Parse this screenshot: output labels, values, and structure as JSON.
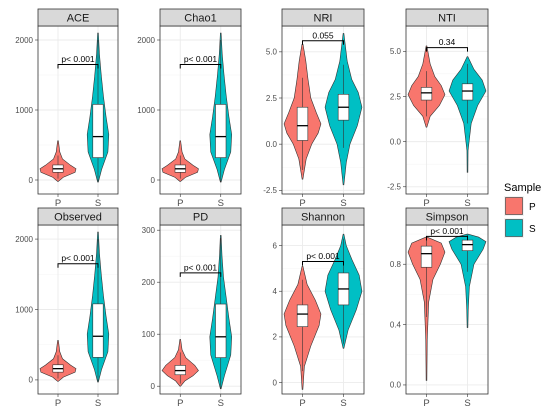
{
  "colors": {
    "P": "#F8766D",
    "S": "#00BFC4"
  },
  "legend": {
    "title": "Sample",
    "items": [
      "P",
      "S"
    ]
  },
  "chart_data": [
    {
      "type": "violin",
      "title": "ACE",
      "categories": [
        "P",
        "S"
      ],
      "yticks": [
        0,
        1000,
        2000
      ],
      "ylim": [
        -200,
        2200
      ],
      "annotation": "p< 0.001",
      "bracket_y": 1650,
      "violins": [
        {
          "group": "P",
          "min": -20,
          "max": 560,
          "widths": [
            [
              -20,
              0.02
            ],
            [
              40,
              0.3
            ],
            [
              110,
              0.95
            ],
            [
              160,
              1.0
            ],
            [
              210,
              0.7
            ],
            [
              300,
              0.25
            ],
            [
              400,
              0.1
            ],
            [
              560,
              0.02
            ]
          ]
        },
        {
          "group": "S",
          "min": -30,
          "max": 2100,
          "widths": [
            [
              -30,
              0.02
            ],
            [
              150,
              0.2
            ],
            [
              400,
              0.55
            ],
            [
              650,
              0.6
            ],
            [
              900,
              0.45
            ],
            [
              1200,
              0.3
            ],
            [
              1500,
              0.18
            ],
            [
              1800,
              0.08
            ],
            [
              2100,
              0.02
            ]
          ]
        }
      ],
      "boxes": [
        {
          "group": "P",
          "q1": 110,
          "median": 160,
          "q3": 215,
          "wlo": 20,
          "whi": 350
        },
        {
          "group": "S",
          "q1": 320,
          "median": 620,
          "q3": 1080,
          "wlo": -30,
          "whi": 2000
        }
      ]
    },
    {
      "type": "violin",
      "title": "Chao1",
      "categories": [
        "P",
        "S"
      ],
      "yticks": [
        0,
        1000,
        2000
      ],
      "ylim": [
        -200,
        2200
      ],
      "annotation": "p< 0.001",
      "bracket_y": 1650,
      "violins": [
        {
          "group": "P",
          "min": -20,
          "max": 560,
          "widths": [
            [
              -20,
              0.02
            ],
            [
              40,
              0.3
            ],
            [
              110,
              0.95
            ],
            [
              160,
              1.0
            ],
            [
              210,
              0.7
            ],
            [
              300,
              0.25
            ],
            [
              400,
              0.1
            ],
            [
              560,
              0.02
            ]
          ]
        },
        {
          "group": "S",
          "min": -30,
          "max": 2100,
          "widths": [
            [
              -30,
              0.02
            ],
            [
              150,
              0.2
            ],
            [
              400,
              0.55
            ],
            [
              650,
              0.6
            ],
            [
              900,
              0.45
            ],
            [
              1200,
              0.3
            ],
            [
              1500,
              0.18
            ],
            [
              1800,
              0.08
            ],
            [
              2100,
              0.02
            ]
          ]
        }
      ],
      "boxes": [
        {
          "group": "P",
          "q1": 110,
          "median": 160,
          "q3": 215,
          "wlo": 20,
          "whi": 350
        },
        {
          "group": "S",
          "q1": 320,
          "median": 620,
          "q3": 1080,
          "wlo": -30,
          "whi": 2000
        }
      ]
    },
    {
      "type": "violin",
      "title": "NRI",
      "categories": [
        "P",
        "S"
      ],
      "yticks": [
        -2.5,
        0.0,
        2.5,
        5.0
      ],
      "ylim": [
        -2.7,
        6.4
      ],
      "annotation": "0.055",
      "bracket_y": 5.6,
      "violins": [
        {
          "group": "P",
          "min": -1.9,
          "max": 5.4,
          "widths": [
            [
              -1.9,
              0.02
            ],
            [
              -0.8,
              0.2
            ],
            [
              0.0,
              0.5
            ],
            [
              0.6,
              0.85
            ],
            [
              1.1,
              1.0
            ],
            [
              1.7,
              0.75
            ],
            [
              2.5,
              0.45
            ],
            [
              3.5,
              0.3
            ],
            [
              4.5,
              0.18
            ],
            [
              5.4,
              0.03
            ]
          ]
        },
        {
          "group": "S",
          "min": -2.2,
          "max": 6.0,
          "widths": [
            [
              -2.2,
              0.02
            ],
            [
              -1.0,
              0.15
            ],
            [
              0.0,
              0.35
            ],
            [
              1.0,
              0.75
            ],
            [
              2.0,
              1.0
            ],
            [
              2.8,
              0.8
            ],
            [
              3.5,
              0.45
            ],
            [
              4.5,
              0.2
            ],
            [
              6.0,
              0.02
            ]
          ]
        }
      ],
      "boxes": [
        {
          "group": "P",
          "q1": 0.2,
          "median": 1.0,
          "q3": 2.0,
          "wlo": -1.4,
          "whi": 3.6
        },
        {
          "group": "S",
          "q1": 1.3,
          "median": 2.0,
          "q3": 2.7,
          "wlo": -0.2,
          "whi": 4.3
        }
      ]
    },
    {
      "type": "violin",
      "title": "NTI",
      "categories": [
        "P",
        "S"
      ],
      "yticks": [
        -2.5,
        0.0,
        2.5,
        5.0
      ],
      "ylim": [
        -2.9,
        6.4
      ],
      "annotation": "0.34",
      "bracket_y": 5.2,
      "violins": [
        {
          "group": "P",
          "min": 0.8,
          "max": 5.3,
          "widths": [
            [
              0.8,
              0.02
            ],
            [
              1.4,
              0.2
            ],
            [
              2.0,
              0.7
            ],
            [
              2.6,
              1.0
            ],
            [
              3.1,
              0.8
            ],
            [
              3.6,
              0.45
            ],
            [
              4.3,
              0.2
            ],
            [
              5.3,
              0.02
            ]
          ]
        },
        {
          "group": "S",
          "min": -1.7,
          "max": 4.7,
          "widths": [
            [
              -1.7,
              0.02
            ],
            [
              -0.5,
              0.03
            ],
            [
              1.0,
              0.2
            ],
            [
              2.0,
              0.55
            ],
            [
              2.8,
              1.0
            ],
            [
              3.4,
              0.8
            ],
            [
              4.0,
              0.35
            ],
            [
              4.7,
              0.02
            ]
          ]
        }
      ],
      "boxes": [
        {
          "group": "P",
          "q1": 2.3,
          "median": 2.7,
          "q3": 3.0,
          "wlo": 1.4,
          "whi": 3.9
        },
        {
          "group": "S",
          "q1": 2.3,
          "median": 2.8,
          "q3": 3.2,
          "wlo": 1.0,
          "whi": 4.3
        }
      ]
    },
    {
      "type": "violin",
      "title": "Observed",
      "categories": [
        "P",
        "S"
      ],
      "yticks": [
        0,
        1000,
        2000
      ],
      "ylim": [
        -200,
        2200
      ],
      "annotation": "p< 0.001",
      "bracket_y": 1650,
      "violins": [
        {
          "group": "P",
          "min": -20,
          "max": 560,
          "widths": [
            [
              -20,
              0.02
            ],
            [
              40,
              0.3
            ],
            [
              110,
              0.95
            ],
            [
              160,
              1.0
            ],
            [
              210,
              0.7
            ],
            [
              300,
              0.25
            ],
            [
              400,
              0.1
            ],
            [
              560,
              0.02
            ]
          ]
        },
        {
          "group": "S",
          "min": -30,
          "max": 2100,
          "widths": [
            [
              -30,
              0.02
            ],
            [
              150,
              0.2
            ],
            [
              400,
              0.55
            ],
            [
              650,
              0.6
            ],
            [
              900,
              0.45
            ],
            [
              1200,
              0.3
            ],
            [
              1500,
              0.18
            ],
            [
              1800,
              0.08
            ],
            [
              2100,
              0.02
            ]
          ]
        }
      ],
      "boxes": [
        {
          "group": "P",
          "q1": 110,
          "median": 160,
          "q3": 215,
          "wlo": 20,
          "whi": 350
        },
        {
          "group": "S",
          "q1": 320,
          "median": 620,
          "q3": 1080,
          "wlo": -30,
          "whi": 2000
        }
      ]
    },
    {
      "type": "violin",
      "title": "PD",
      "categories": [
        "P",
        "S"
      ],
      "yticks": [
        0,
        100,
        200,
        300
      ],
      "ylim": [
        -15,
        310
      ],
      "annotation": "p< 0.001",
      "bracket_y": 218,
      "violins": [
        {
          "group": "P",
          "min": 0,
          "max": 90,
          "widths": [
            [
              0,
              0.02
            ],
            [
              10,
              0.25
            ],
            [
              20,
              0.7
            ],
            [
              30,
              1.0
            ],
            [
              40,
              0.8
            ],
            [
              55,
              0.3
            ],
            [
              70,
              0.1
            ],
            [
              90,
              0.02
            ]
          ]
        },
        {
          "group": "S",
          "min": -5,
          "max": 290,
          "widths": [
            [
              -5,
              0.02
            ],
            [
              20,
              0.2
            ],
            [
              60,
              0.55
            ],
            [
              95,
              0.6
            ],
            [
              130,
              0.45
            ],
            [
              170,
              0.3
            ],
            [
              210,
              0.15
            ],
            [
              250,
              0.07
            ],
            [
              290,
              0.02
            ]
          ]
        }
      ],
      "boxes": [
        {
          "group": "P",
          "q1": 22,
          "median": 30,
          "q3": 40,
          "wlo": 5,
          "whi": 65
        },
        {
          "group": "S",
          "q1": 55,
          "median": 95,
          "q3": 158,
          "wlo": -5,
          "whi": 285
        }
      ]
    },
    {
      "type": "violin",
      "title": "Shannon",
      "categories": [
        "P",
        "S"
      ],
      "yticks": [
        0,
        2,
        4,
        6
      ],
      "ylim": [
        -0.5,
        6.9
      ],
      "annotation": "p< 0.001",
      "bracket_y": 5.3,
      "violins": [
        {
          "group": "P",
          "min": -0.3,
          "max": 5.1,
          "widths": [
            [
              -0.3,
              0.02
            ],
            [
              0.7,
              0.1
            ],
            [
              1.6,
              0.45
            ],
            [
              2.5,
              0.9
            ],
            [
              3.0,
              1.0
            ],
            [
              3.6,
              0.7
            ],
            [
              4.3,
              0.25
            ],
            [
              5.1,
              0.02
            ]
          ]
        },
        {
          "group": "S",
          "min": 1.5,
          "max": 6.5,
          "widths": [
            [
              1.5,
              0.02
            ],
            [
              2.3,
              0.25
            ],
            [
              3.2,
              0.7
            ],
            [
              4.0,
              1.0
            ],
            [
              4.7,
              0.85
            ],
            [
              5.4,
              0.45
            ],
            [
              6.0,
              0.15
            ],
            [
              6.5,
              0.02
            ]
          ]
        }
      ],
      "boxes": [
        {
          "group": "P",
          "q1": 2.45,
          "median": 3.0,
          "q3": 3.4,
          "wlo": 0.5,
          "whi": 4.5
        },
        {
          "group": "S",
          "q1": 3.4,
          "median": 4.1,
          "q3": 4.8,
          "wlo": 1.7,
          "whi": 6.3
        }
      ]
    },
    {
      "type": "violin",
      "title": "Simpson",
      "categories": [
        "P",
        "S"
      ],
      "yticks": [
        0.0,
        0.4,
        0.8
      ],
      "ylim": [
        -0.06,
        1.06
      ],
      "annotation": "p< 0.001",
      "bracket_y": 0.985,
      "violins": [
        {
          "group": "P",
          "min": 0.03,
          "max": 0.98,
          "widths": [
            [
              0.03,
              0.02
            ],
            [
              0.3,
              0.04
            ],
            [
              0.55,
              0.12
            ],
            [
              0.7,
              0.35
            ],
            [
              0.8,
              0.75
            ],
            [
              0.88,
              1.0
            ],
            [
              0.94,
              0.8
            ],
            [
              0.98,
              0.03
            ]
          ]
        },
        {
          "group": "S",
          "min": 0.38,
          "max": 1.0,
          "widths": [
            [
              0.38,
              0.02
            ],
            [
              0.5,
              0.04
            ],
            [
              0.65,
              0.1
            ],
            [
              0.8,
              0.35
            ],
            [
              0.9,
              0.85
            ],
            [
              0.95,
              1.0
            ],
            [
              0.98,
              0.6
            ],
            [
              1.0,
              0.02
            ]
          ]
        }
      ],
      "boxes": [
        {
          "group": "P",
          "q1": 0.78,
          "median": 0.87,
          "q3": 0.92,
          "wlo": 0.45,
          "whi": 0.98
        },
        {
          "group": "S",
          "q1": 0.89,
          "median": 0.93,
          "q3": 0.96,
          "wlo": 0.75,
          "whi": 0.995
        }
      ]
    }
  ]
}
